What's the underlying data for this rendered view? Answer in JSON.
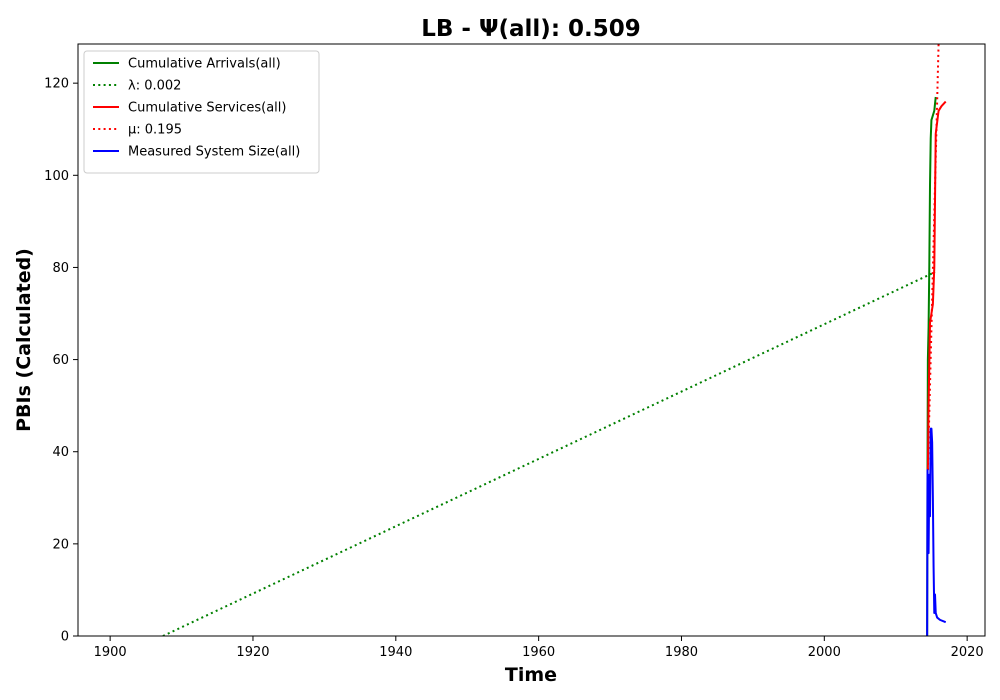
{
  "chart_data": {
    "type": "line",
    "title": "LB -  Ψ(all): 0.509",
    "xlabel": "Time",
    "ylabel": "PBIs (Calculated)",
    "xlim": [
      1895.5,
      2022.5
    ],
    "ylim": [
      0,
      128.5
    ],
    "xticks": [
      1900,
      1920,
      1940,
      1960,
      1980,
      2000,
      2020
    ],
    "yticks": [
      0,
      20,
      40,
      60,
      80,
      100,
      120
    ],
    "grid": false,
    "legend_position": "top-left",
    "series": [
      {
        "name": "Cumulative Arrivals(all)",
        "color": "#008000",
        "style": "solid",
        "x": [
          2014.4,
          2014.45,
          2014.5,
          2014.6,
          2014.7,
          2014.8,
          2014.9,
          2015.0,
          2015.2,
          2015.4,
          2015.6
        ],
        "y": [
          0,
          36,
          60,
          67,
          80,
          98,
          108,
          112,
          113,
          114,
          117
        ]
      },
      {
        "name": "λ: 0.002",
        "color": "#008000",
        "style": "dotted",
        "x": [
          1907.4,
          2015.5
        ],
        "y": [
          0,
          79
        ]
      },
      {
        "name": "Cumulative Services(all)",
        "color": "#ff0000",
        "style": "solid",
        "x": [
          2014.5,
          2014.6,
          2014.8,
          2015.0,
          2015.1,
          2015.2,
          2015.4,
          2015.6,
          2016.0,
          2016.4,
          2017.0
        ],
        "y": [
          36,
          50,
          68,
          70,
          71,
          72,
          80,
          109,
          114,
          115,
          116
        ]
      },
      {
        "name": "μ: 0.195",
        "color": "#ff0000",
        "style": "dotted",
        "x": [
          2014.5,
          2016.0
        ],
        "y": [
          36,
          128.5
        ]
      },
      {
        "name": "Measured System Size(all)",
        "color": "#0000ff",
        "style": "solid",
        "x": [
          2014.4,
          2014.45,
          2014.55,
          2014.6,
          2014.7,
          2014.8,
          2014.9,
          2015.0,
          2015.1,
          2015.2,
          2015.3,
          2015.4,
          2015.5,
          2015.6,
          2015.8,
          2016.2,
          2017.0
        ],
        "y": [
          0,
          36,
          30,
          18,
          35,
          26,
          45,
          45,
          42,
          30,
          15,
          5,
          9,
          5,
          4,
          3.5,
          3
        ]
      }
    ]
  }
}
